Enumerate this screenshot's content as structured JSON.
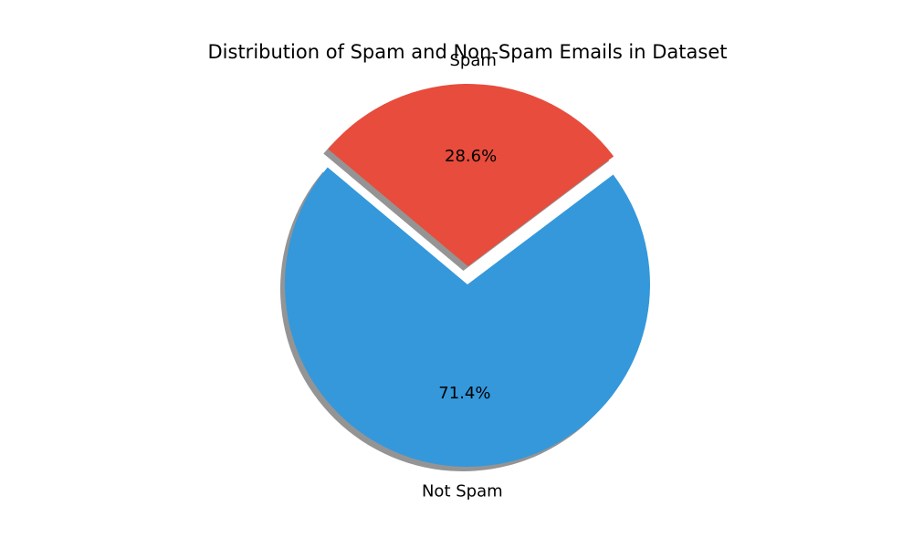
{
  "chart_data": {
    "type": "pie",
    "title": "Distribution of Spam and Non-Spam Emails in Dataset",
    "slices": [
      {
        "label": "Not Spam",
        "value": 71.4,
        "pct_label": "71.4%",
        "color": "#3498db",
        "explode": false
      },
      {
        "label": "Spam",
        "value": 28.6,
        "pct_label": "28.6%",
        "color": "#e74c3c",
        "explode": true
      }
    ],
    "start_angle_deg": 140,
    "shadow": true,
    "legend": "none"
  }
}
